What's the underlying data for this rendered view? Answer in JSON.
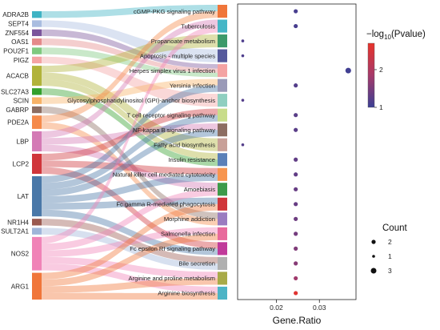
{
  "chart_data": {
    "type": "sankey-dotplot",
    "xlabel": "Gene.Ratio",
    "x_ticks": [
      0.02,
      0.03
    ],
    "xlim": [
      0.011,
      0.0385
    ],
    "genes": [
      {
        "name": "ADRA2B",
        "color": "#3fb3c4"
      },
      {
        "name": "SEPT4",
        "color": "#a9bde0"
      },
      {
        "name": "ZNF554",
        "color": "#7b559c"
      },
      {
        "name": "OAS1",
        "color": "#e48a8a"
      },
      {
        "name": "POU2F1",
        "color": "#7fc97f"
      },
      {
        "name": "PIGZ",
        "color": "#f4a3a3"
      },
      {
        "name": "ACACB",
        "color": "#b1b33a"
      },
      {
        "name": "SLC27A3",
        "color": "#33a02c"
      },
      {
        "name": "SCIN",
        "color": "#f7b267"
      },
      {
        "name": "GABRP",
        "color": "#8c6d62"
      },
      {
        "name": "PDE2A",
        "color": "#f58a4b"
      },
      {
        "name": "LBP",
        "color": "#d47ab5"
      },
      {
        "name": "LCP2",
        "color": "#d0363b"
      },
      {
        "name": "LAT",
        "color": "#4a78a8"
      },
      {
        "name": "NR1H4",
        "color": "#9a5a50"
      },
      {
        "name": "SULT2A1",
        "color": "#9fb5d9"
      },
      {
        "name": "NOS2",
        "color": "#f083b7"
      },
      {
        "name": "ARG1",
        "color": "#f0763a"
      }
    ],
    "pathways": [
      {
        "name": "cGMP-PKG signaling pathway",
        "color": "#f0763a",
        "gene_ratio": 0.0245,
        "pvalue_log10": 1.1,
        "count": 2
      },
      {
        "name": "Tuberculosis",
        "color": "#45b6c6",
        "gene_ratio": 0.0245,
        "pvalue_log10": 1.1,
        "count": 2
      },
      {
        "name": "Propanoate metabolism",
        "color": "#3d9a6a",
        "gene_ratio": 0.0122,
        "pvalue_log10": 1.15,
        "count": 1
      },
      {
        "name": "Apoptosis - multiple species",
        "color": "#565a9c",
        "gene_ratio": 0.0122,
        "pvalue_log10": 1.15,
        "count": 1
      },
      {
        "name": "Herpes simplex virus 1 infection",
        "color": "#f4a3a3",
        "gene_ratio": 0.0367,
        "pvalue_log10": 1.05,
        "count": 3
      },
      {
        "name": "Yersinia infection",
        "color": "#9a9ab8",
        "gene_ratio": 0.0245,
        "pvalue_log10": 1.2,
        "count": 2
      },
      {
        "name": "Glycosylphosphatidylinositol (GPI)-anchor biosynthesis",
        "color": "#8fcfc0",
        "gene_ratio": 0.0122,
        "pvalue_log10": 1.2,
        "count": 1
      },
      {
        "name": "T cell receptor signaling pathway",
        "color": "#c8dc8a",
        "gene_ratio": 0.0245,
        "pvalue_log10": 1.25,
        "count": 2
      },
      {
        "name": "NF-kappa B signaling pathway",
        "color": "#8c6d62",
        "gene_ratio": 0.0245,
        "pvalue_log10": 1.25,
        "count": 2
      },
      {
        "name": "Fatty acid biosynthesis",
        "color": "#c8a098",
        "gene_ratio": 0.0122,
        "pvalue_log10": 1.2,
        "count": 1
      },
      {
        "name": "Insulin resistance",
        "color": "#5b80b8",
        "gene_ratio": 0.0245,
        "pvalue_log10": 1.3,
        "count": 2
      },
      {
        "name": "Natural killer cell mediated cytotoxicity",
        "color": "#f7954f",
        "gene_ratio": 0.0245,
        "pvalue_log10": 1.3,
        "count": 2
      },
      {
        "name": "Amoebiasis",
        "color": "#3d9a4a",
        "gene_ratio": 0.0245,
        "pvalue_log10": 1.35,
        "count": 2
      },
      {
        "name": "Fc gamma R-mediated phagocytosis",
        "color": "#d0363b",
        "gene_ratio": 0.0245,
        "pvalue_log10": 1.35,
        "count": 2
      },
      {
        "name": "Morphine addiction",
        "color": "#9a7cc0",
        "gene_ratio": 0.0245,
        "pvalue_log10": 1.4,
        "count": 2
      },
      {
        "name": "Salmonella infection",
        "color": "#e86a9c",
        "gene_ratio": 0.0245,
        "pvalue_log10": 1.45,
        "count": 2
      },
      {
        "name": "Fc epsilon RI signaling pathway",
        "color": "#c03a9a",
        "gene_ratio": 0.0245,
        "pvalue_log10": 1.55,
        "count": 2
      },
      {
        "name": "Bile secretion",
        "color": "#b0b0b0",
        "gene_ratio": 0.0245,
        "pvalue_log10": 1.6,
        "count": 2
      },
      {
        "name": "Arginine and proline metabolism",
        "color": "#a8aa48",
        "gene_ratio": 0.0245,
        "pvalue_log10": 1.8,
        "count": 2
      },
      {
        "name": "Arginine biosynthesis",
        "color": "#4cb4c6",
        "gene_ratio": 0.0245,
        "pvalue_log10": 2.6,
        "count": 2
      }
    ],
    "links": [
      [
        "ADRA2B",
        "cGMP-PKG signaling pathway"
      ],
      [
        "SEPT4",
        "Apoptosis - multiple species"
      ],
      [
        "ZNF554",
        "Herpes simplex virus 1 infection"
      ],
      [
        "OAS1",
        "Herpes simplex virus 1 infection"
      ],
      [
        "POU2F1",
        "Herpes simplex virus 1 infection"
      ],
      [
        "PIGZ",
        "Glycosylphosphatidylinositol (GPI)-anchor biosynthesis"
      ],
      [
        "ACACB",
        "Propanoate metabolism"
      ],
      [
        "ACACB",
        "Insulin resistance"
      ],
      [
        "ACACB",
        "Fatty acid biosynthesis"
      ],
      [
        "SLC27A3",
        "Insulin resistance"
      ],
      [
        "SCIN",
        "Yersinia infection"
      ],
      [
        "GABRP",
        "Morphine addiction"
      ],
      [
        "PDE2A",
        "cGMP-PKG signaling pathway"
      ],
      [
        "PDE2A",
        "Morphine addiction"
      ],
      [
        "LBP",
        "Tuberculosis"
      ],
      [
        "LBP",
        "NF-kappa B signaling pathway"
      ],
      [
        "LBP",
        "Amoebiasis"
      ],
      [
        "LCP2",
        "T cell receptor signaling pathway"
      ],
      [
        "LCP2",
        "Natural killer cell mediated cytotoxicity"
      ],
      [
        "LCP2",
        "Fc epsilon RI signaling pathway"
      ],
      [
        "LAT",
        "Yersinia infection"
      ],
      [
        "LAT",
        "T cell receptor signaling pathway"
      ],
      [
        "LAT",
        "NF-kappa B signaling pathway"
      ],
      [
        "LAT",
        "Natural killer cell mediated cytotoxicity"
      ],
      [
        "LAT",
        "Fc gamma R-mediated phagocytosis"
      ],
      [
        "LAT",
        "Fc epsilon RI signaling pathway"
      ],
      [
        "NR1H4",
        "Bile secretion"
      ],
      [
        "SULT2A1",
        "Bile secretion"
      ],
      [
        "NOS2",
        "Tuberculosis"
      ],
      [
        "NOS2",
        "Amoebiasis"
      ],
      [
        "NOS2",
        "Salmonella infection"
      ],
      [
        "NOS2",
        "Arginine and proline metabolism"
      ],
      [
        "NOS2",
        "Arginine biosynthesis"
      ],
      [
        "ARG1",
        "Fc gamma R-mediated phagocytosis"
      ],
      [
        "ARG1",
        "Salmonella infection"
      ],
      [
        "ARG1",
        "Arginine and proline metabolism"
      ],
      [
        "ARG1",
        "Arginine biosynthesis"
      ]
    ],
    "color_legend": {
      "title_main": "−log",
      "title_sub": "10",
      "title_rest": "(Pvalue)",
      "ticks": [
        1,
        2
      ],
      "range": [
        1,
        2.7
      ],
      "low_color": "#3b3f94",
      "high_color": "#e8332a"
    },
    "size_legend": {
      "title": "Count",
      "entries": [
        {
          "label": "2",
          "count": 2
        },
        {
          "label": "1",
          "count": 1
        },
        {
          "label": "3",
          "count": 3
        }
      ]
    }
  }
}
